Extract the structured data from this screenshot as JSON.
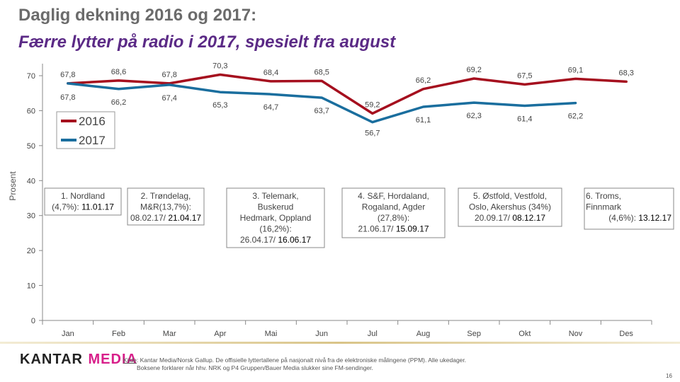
{
  "slide": {
    "title": "Daglig dekning 2016 og 2017:",
    "subtitle": "Færre lytter på radio i 2017, spesielt fra august"
  },
  "chart_data": {
    "type": "line",
    "categories": [
      "Jan",
      "Feb",
      "Mar",
      "Apr",
      "Mai",
      "Jun",
      "Jul",
      "Aug",
      "Sep",
      "Okt",
      "Nov",
      "Des"
    ],
    "series": [
      {
        "name": "2016",
        "color": "#a50f1e",
        "values": [
          67.8,
          68.6,
          67.8,
          70.3,
          68.4,
          68.5,
          59.2,
          66.2,
          69.2,
          67.5,
          69.1,
          68.3
        ],
        "labels": [
          "67,8",
          "68,6",
          "67,8",
          "70,3",
          "68,4",
          "68,5",
          "59,2",
          "66,2",
          "69,2",
          "67,5",
          "69,1",
          "68,3"
        ]
      },
      {
        "name": "2017",
        "color": "#1a6e9e",
        "values": [
          67.8,
          66.2,
          67.4,
          65.3,
          64.7,
          63.7,
          56.7,
          61.1,
          62.3,
          61.4,
          62.2,
          null
        ],
        "labels": [
          "67,8",
          "66,2",
          "67,4",
          "65,3",
          "64,7",
          "63,7",
          "56,7",
          "61,1",
          "62,3",
          "61,4",
          "62,2",
          ""
        ]
      }
    ],
    "ylabel": "Prosent",
    "ylim": [
      0,
      70
    ],
    "yticks": [
      0,
      10,
      20,
      30,
      40,
      50,
      60,
      70
    ],
    "grid": false,
    "legend_position": "left, below 60",
    "annotations": [
      {
        "lines": [
          "1. Nordland"
        ],
        "mixed": {
          "a": "(4,7%): ",
          "b": "11.01.17"
        }
      },
      {
        "lines": [
          "2. Trøndelag,",
          "M&R(13,7%):"
        ],
        "mixed": {
          "a": "08.02.17/ ",
          "b": "21.04.17"
        }
      },
      {
        "lines": [
          "3. Telemark,",
          "Buskerud",
          "Hedmark, Oppland",
          "(16,2%):"
        ],
        "mixed": {
          "a": "26.04.17/ ",
          "b": "16.06.17"
        }
      },
      {
        "lines": [
          "4. S&F, Hordaland,",
          "Rogaland, Agder",
          "(27,8%):"
        ],
        "mixed": {
          "a": "21.06.17/ ",
          "b": "15.09.17"
        }
      },
      {
        "lines": [
          "5. Østfold, Vestfold,",
          "Oslo, Akershus (34%)"
        ],
        "mixed": {
          "a": "20.09.17/ ",
          "b": "08.12.17"
        }
      },
      {
        "lines": [
          "6. Troms,",
          "Finnmark"
        ],
        "mixed": {
          "a": "(4,6%): ",
          "b": "13.12.17"
        }
      }
    ]
  },
  "footer": {
    "logo_main": "KANTAR",
    "logo_accent": "MEDIA",
    "source_label": "Kilde",
    "source_line1": ": Kantar Media/Norsk Gallup. De offisielle lyttertallene på nasjonalt nivå fra de elektroniske målingene (PPM). Alle ukedager.",
    "source_line2": "Boksene forklarer når hhv. NRK og P4 Gruppen/Bauer Media slukker sine FM-sendinger.",
    "page_number": "16"
  }
}
